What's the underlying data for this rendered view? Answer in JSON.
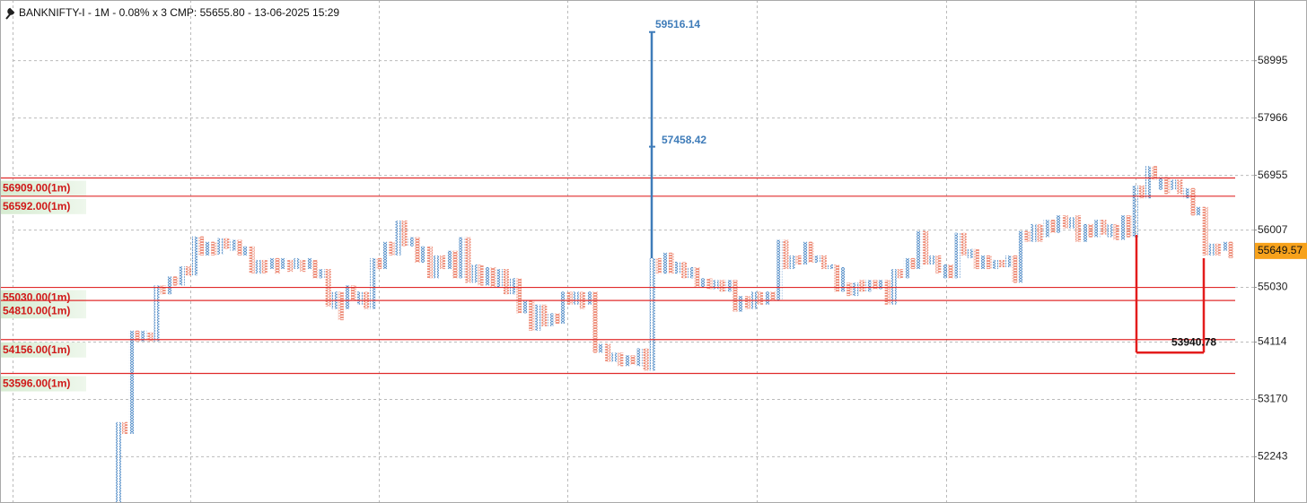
{
  "chart_data": {
    "type": "pointfigure",
    "header": "BANKNIFTY-I - 1M - 0.08% x 3 CMP: 55655.80 - 13-06-2025 15:29",
    "log_scale": true,
    "grid": true,
    "ylim": [
      51507,
      60104
    ],
    "yticks": [
      52243,
      53170,
      54114,
      55030,
      56007,
      56955,
      57966,
      58995
    ],
    "x_color": "#4f8ac6",
    "o_color": "#ea7a62",
    "level_color": "#e02b2b",
    "levels": [
      {
        "value": 56909,
        "label": "56909.00(1m)"
      },
      {
        "value": 56592,
        "label": "56592.00(1m)"
      },
      {
        "value": 55030,
        "label": "55030.00(1m)"
      },
      {
        "value": 54810,
        "label": "54810.00(1m)"
      },
      {
        "value": 54156,
        "label": "54156.00(1m)"
      },
      {
        "value": 53596,
        "label": "53596.00(1m)"
      }
    ],
    "target_high": 59516.14,
    "target_mid": 57458.42,
    "target_low": 53940.78,
    "last_price": 55649.57,
    "columns": [
      [
        51507,
        52802
      ],
      [
        52611,
        52802
      ],
      [
        52611,
        54305
      ],
      [
        54128,
        54305
      ],
      [
        54128,
        54305
      ],
      [
        54128,
        54276
      ],
      [
        54128,
        55061
      ],
      [
        54914,
        55061
      ],
      [
        54914,
        55216
      ],
      [
        55061,
        55216
      ],
      [
        55061,
        55387
      ],
      [
        55232,
        55387
      ],
      [
        55232,
        55898
      ],
      [
        55573,
        55898
      ],
      [
        55573,
        55806
      ],
      [
        55573,
        55806
      ],
      [
        55589,
        55868
      ],
      [
        55682,
        55868
      ],
      [
        55651,
        55837
      ],
      [
        55573,
        55837
      ],
      [
        55573,
        55728
      ],
      [
        55263,
        55728
      ],
      [
        55263,
        55496
      ],
      [
        55263,
        55496
      ],
      [
        55341,
        55527
      ],
      [
        55263,
        55527
      ],
      [
        55341,
        55527
      ],
      [
        55294,
        55496
      ],
      [
        55341,
        55527
      ],
      [
        55294,
        55496
      ],
      [
        55341,
        55527
      ],
      [
        55185,
        55496
      ],
      [
        55185,
        55341
      ],
      [
        54711,
        55341
      ],
      [
        54668,
        54958
      ],
      [
        54479,
        54958
      ],
      [
        54668,
        55061
      ],
      [
        54813,
        55061
      ],
      [
        54740,
        54958
      ],
      [
        54668,
        54958
      ],
      [
        54668,
        55527
      ],
      [
        55341,
        55527
      ],
      [
        55341,
        55806
      ],
      [
        55573,
        55806
      ],
      [
        55573,
        56171
      ],
      [
        55728,
        56171
      ],
      [
        55728,
        55883
      ],
      [
        55450,
        55883
      ],
      [
        55450,
        55728
      ],
      [
        55185,
        55728
      ],
      [
        55185,
        55573
      ],
      [
        55341,
        55573
      ],
      [
        55341,
        55651
      ],
      [
        55185,
        55651
      ],
      [
        55185,
        55883
      ],
      [
        55108,
        55883
      ],
      [
        55108,
        55418
      ],
      [
        55061,
        55418
      ],
      [
        55061,
        55372
      ],
      [
        55030,
        55372
      ],
      [
        55030,
        55341
      ],
      [
        54914,
        55341
      ],
      [
        54914,
        55185
      ],
      [
        54595,
        55185
      ],
      [
        54595,
        54813
      ],
      [
        54305,
        54813
      ],
      [
        54305,
        54740
      ],
      [
        54378,
        54740
      ],
      [
        54378,
        54595
      ],
      [
        54421,
        54595
      ],
      [
        54421,
        54958
      ],
      [
        54740,
        54958
      ],
      [
        54740,
        54958
      ],
      [
        54668,
        54958
      ],
      [
        54740,
        54958
      ],
      [
        53937,
        54958
      ],
      [
        53937,
        54085
      ],
      [
        53789,
        54085
      ],
      [
        53789,
        53937
      ],
      [
        53716,
        53937
      ],
      [
        53716,
        53893
      ],
      [
        53745,
        53893
      ],
      [
        53716,
        54011
      ],
      [
        53642,
        54011
      ],
      [
        53642,
        55527
      ],
      [
        55263,
        55527
      ],
      [
        55263,
        55620
      ],
      [
        55263,
        55620
      ],
      [
        55263,
        55465
      ],
      [
        55185,
        55465
      ],
      [
        55185,
        55372
      ],
      [
        55030,
        55372
      ],
      [
        55030,
        55185
      ],
      [
        55001,
        55185
      ],
      [
        55001,
        55154
      ],
      [
        54958,
        55154
      ],
      [
        54958,
        55154
      ],
      [
        54624,
        55154
      ],
      [
        54624,
        54885
      ],
      [
        54668,
        54885
      ],
      [
        54668,
        54958
      ],
      [
        54740,
        54958
      ],
      [
        54740,
        54958
      ],
      [
        54813,
        54958
      ],
      [
        54813,
        55837
      ],
      [
        55341,
        55837
      ],
      [
        55341,
        55573
      ],
      [
        55418,
        55573
      ],
      [
        55418,
        55806
      ],
      [
        55450,
        55806
      ],
      [
        55450,
        55573
      ],
      [
        55341,
        55573
      ],
      [
        55341,
        55418
      ],
      [
        54958,
        55418
      ],
      [
        54958,
        55372
      ],
      [
        54885,
        55108
      ],
      [
        54885,
        55108
      ],
      [
        54958,
        55154
      ],
      [
        54958,
        55154
      ],
      [
        55001,
        55154
      ],
      [
        55001,
        55154
      ],
      [
        54740,
        55154
      ],
      [
        54740,
        55341
      ],
      [
        55185,
        55341
      ],
      [
        55185,
        55527
      ],
      [
        55341,
        55527
      ],
      [
        55341,
        55992
      ],
      [
        55418,
        55992
      ],
      [
        55418,
        55573
      ],
      [
        55263,
        55573
      ],
      [
        55185,
        55418
      ],
      [
        55185,
        55418
      ],
      [
        55185,
        55960
      ],
      [
        55573,
        55960
      ],
      [
        55527,
        55682
      ],
      [
        55341,
        55682
      ],
      [
        55341,
        55573
      ],
      [
        55341,
        55573
      ],
      [
        55341,
        55496
      ],
      [
        55372,
        55496
      ],
      [
        55372,
        55573
      ],
      [
        55108,
        55573
      ],
      [
        55108,
        55992
      ],
      [
        55806,
        55992
      ],
      [
        55806,
        56110
      ],
      [
        55806,
        56110
      ],
      [
        55883,
        56185
      ],
      [
        55960,
        56185
      ],
      [
        55960,
        56259
      ],
      [
        56037,
        56259
      ],
      [
        56037,
        56229
      ],
      [
        55806,
        56259
      ],
      [
        55806,
        56110
      ],
      [
        55883,
        56110
      ],
      [
        55883,
        56185
      ],
      [
        55929,
        56185
      ],
      [
        55883,
        56110
      ],
      [
        55837,
        56110
      ],
      [
        55837,
        56259
      ],
      [
        55883,
        56259
      ],
      [
        55883,
        56777
      ],
      [
        56555,
        56777
      ],
      [
        56555,
        57118
      ],
      [
        56881,
        57118
      ],
      [
        56703,
        56925
      ],
      [
        56629,
        56925
      ],
      [
        56703,
        56881
      ],
      [
        56629,
        56881
      ],
      [
        56555,
        56733
      ],
      [
        56259,
        56733
      ],
      [
        56259,
        56407
      ],
      [
        55573,
        56407
      ],
      [
        55573,
        55775
      ],
      [
        55573,
        55775
      ],
      [
        55651,
        55806
      ],
      [
        55527,
        55806
      ]
    ]
  }
}
